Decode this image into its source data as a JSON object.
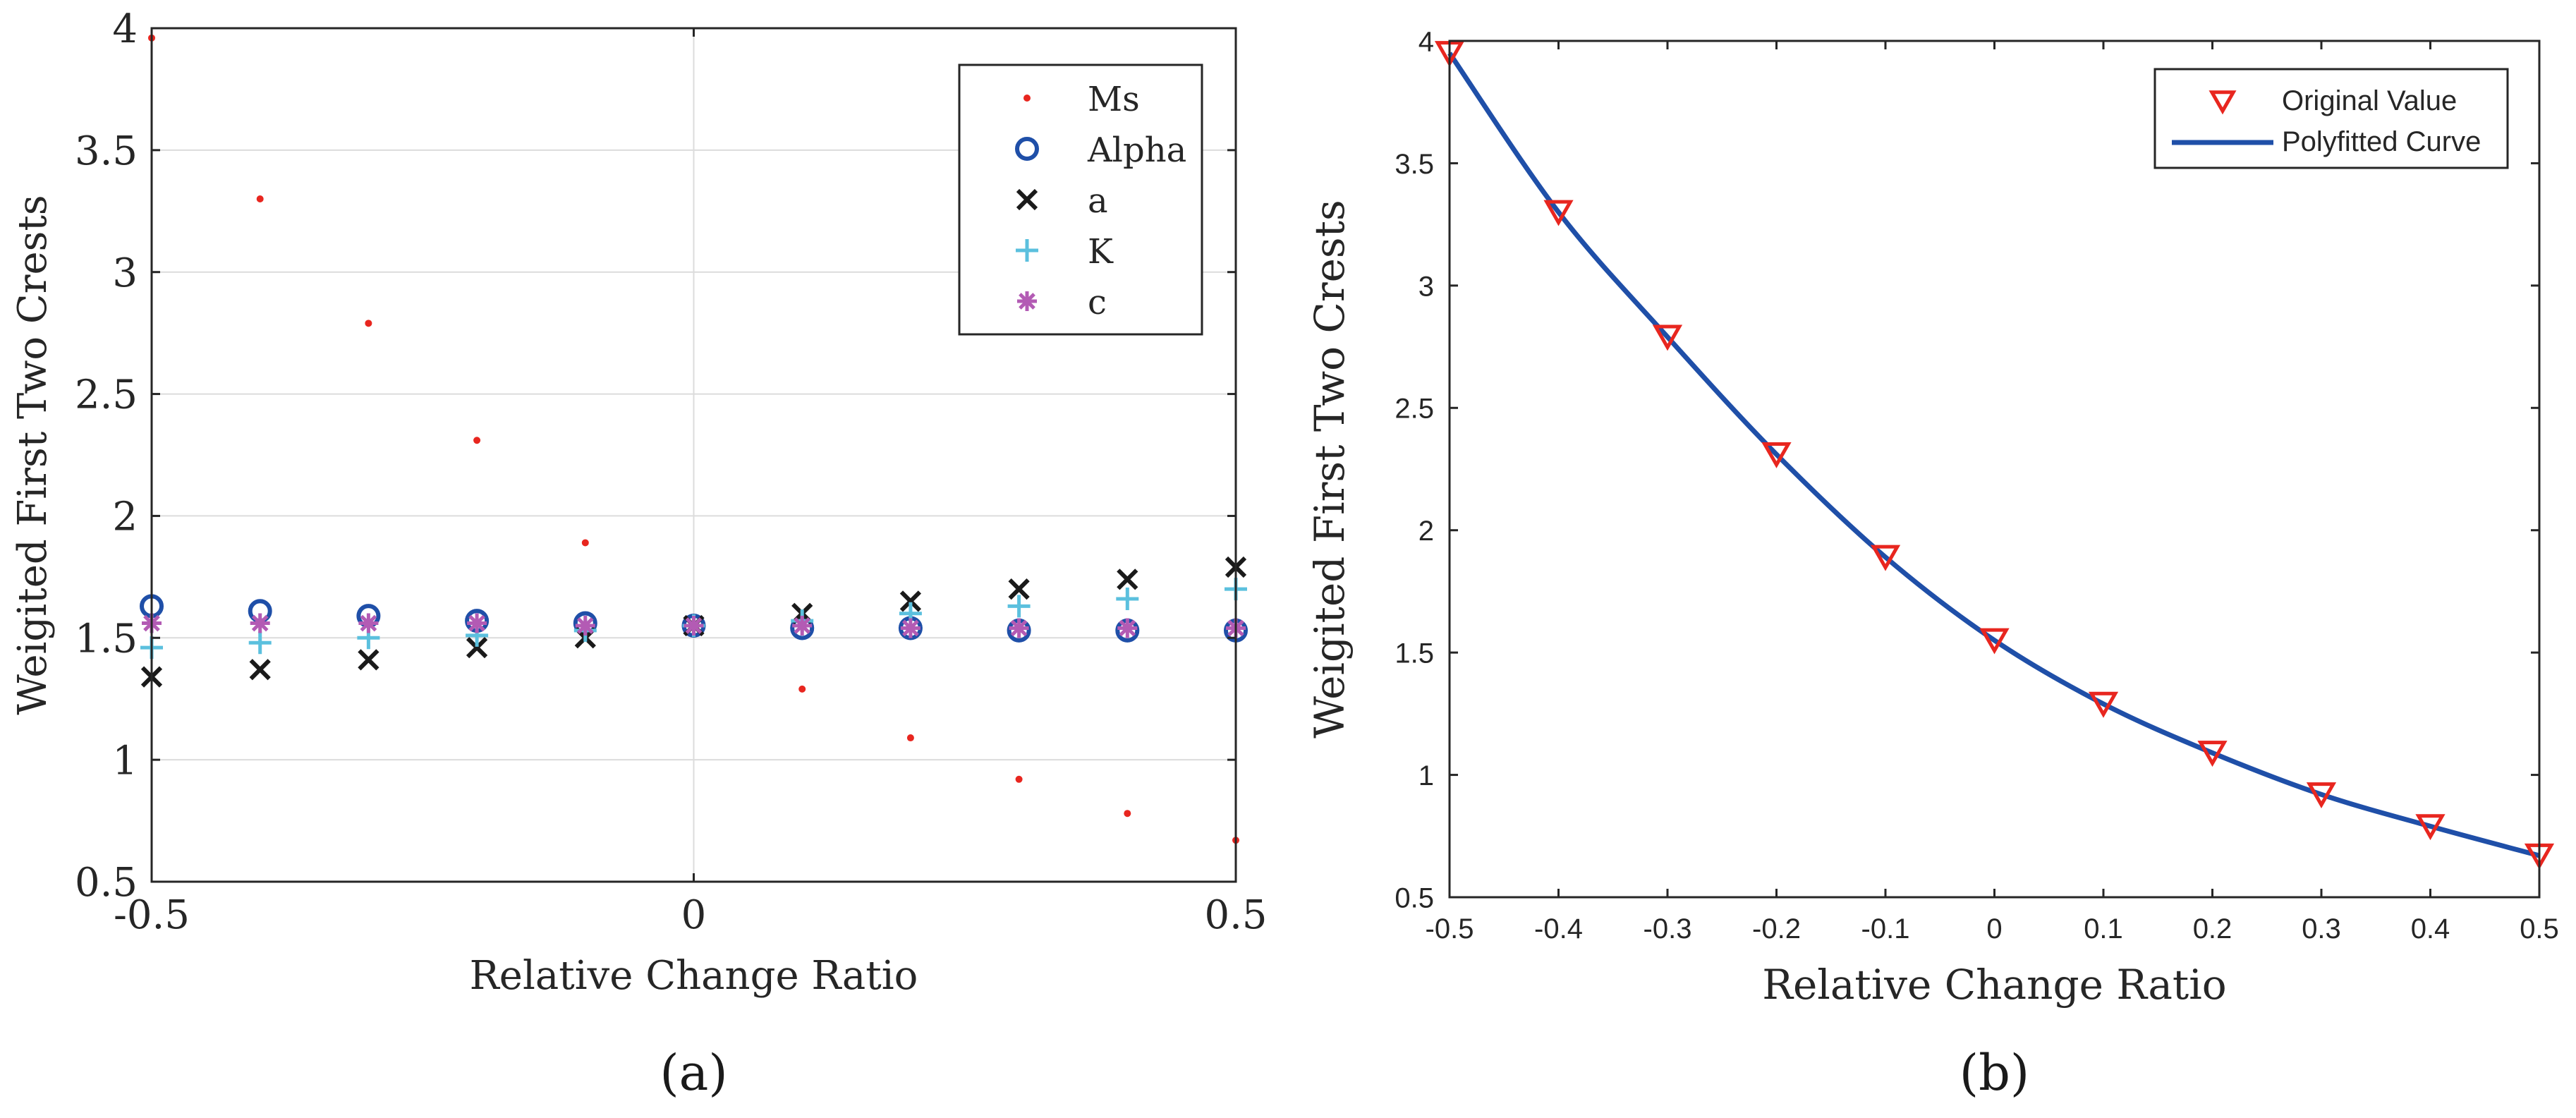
{
  "chart_data": [
    {
      "type": "scatter",
      "panel_label": "(a)",
      "title": "",
      "xlabel": "Relative Change Ratio",
      "ylabel": "Weigited First Two Crests",
      "xlim": [
        -0.5,
        0.5
      ],
      "ylim": [
        0.5,
        4
      ],
      "xticks": [
        "-0.5",
        "0",
        "0.5"
      ],
      "yticks": [
        "0.5",
        "1",
        "1.5",
        "2",
        "2.5",
        "3",
        "3.5",
        "4"
      ],
      "grid": true,
      "legend_position": "top-right",
      "x": [
        -0.5,
        -0.4,
        -0.3,
        -0.2,
        -0.1,
        0,
        0.1,
        0.2,
        0.3,
        0.4,
        0.5
      ],
      "series": [
        {
          "name": "Ms",
          "marker": "dot",
          "color": "#e8261f",
          "values": [
            3.96,
            3.3,
            2.79,
            2.31,
            1.89,
            1.55,
            1.29,
            1.09,
            0.92,
            0.78,
            0.67
          ]
        },
        {
          "name": "Alpha",
          "marker": "circle",
          "color": "#1f4fa8",
          "values": [
            1.63,
            1.61,
            1.59,
            1.57,
            1.56,
            1.55,
            1.54,
            1.54,
            1.53,
            1.53,
            1.53
          ]
        },
        {
          "name": "a",
          "marker": "x",
          "color": "#1a1a1a",
          "values": [
            1.34,
            1.37,
            1.41,
            1.46,
            1.5,
            1.55,
            1.6,
            1.65,
            1.7,
            1.74,
            1.79
          ]
        },
        {
          "name": "K",
          "marker": "plus",
          "color": "#5bc0de",
          "values": [
            1.46,
            1.48,
            1.5,
            1.51,
            1.53,
            1.55,
            1.57,
            1.6,
            1.63,
            1.66,
            1.7
          ]
        },
        {
          "name": "c",
          "marker": "asterisk",
          "color": "#b35bb4",
          "values": [
            1.56,
            1.56,
            1.56,
            1.56,
            1.55,
            1.55,
            1.55,
            1.54,
            1.54,
            1.54,
            1.54
          ]
        }
      ]
    },
    {
      "type": "line",
      "panel_label": "(b)",
      "title": "",
      "xlabel": "Relative Change Ratio",
      "ylabel": "Weigited First Two Crests",
      "xlim": [
        -0.5,
        0.5
      ],
      "ylim": [
        0.5,
        4
      ],
      "xticks": [
        "-0.5",
        "-0.4",
        "-0.3",
        "-0.2",
        "-0.1",
        "0",
        "0.1",
        "0.2",
        "0.3",
        "0.4",
        "0.5"
      ],
      "yticks": [
        "0.5",
        "1",
        "1.5",
        "2",
        "2.5",
        "3",
        "3.5",
        "4"
      ],
      "grid": false,
      "legend_position": "top-right",
      "x": [
        -0.5,
        -0.4,
        -0.3,
        -0.2,
        -0.1,
        0,
        0.1,
        0.2,
        0.3,
        0.4,
        0.5
      ],
      "series": [
        {
          "name": "Original Value",
          "marker": "triangle-down",
          "color": "#e8261f",
          "values": [
            3.95,
            3.3,
            2.79,
            2.31,
            1.89,
            1.55,
            1.29,
            1.09,
            0.92,
            0.79,
            0.67
          ]
        },
        {
          "name": "Polyfitted Curve",
          "marker": "line",
          "color": "#1f4fa8",
          "values": [
            3.95,
            3.3,
            2.79,
            2.31,
            1.89,
            1.55,
            1.29,
            1.09,
            0.92,
            0.79,
            0.67
          ]
        }
      ]
    }
  ]
}
